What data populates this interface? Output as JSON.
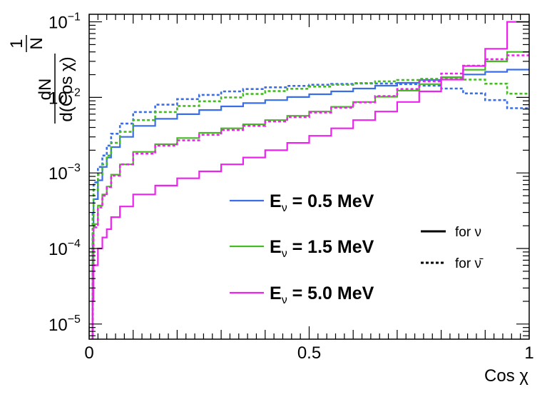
{
  "chart_data": {
    "type": "line",
    "scale_y": "log",
    "xlabel": "Cos χ",
    "ylabel": {
      "prefix_num": "1",
      "prefix_den": "N",
      "num": "dN",
      "den": "d(Cos χ)"
    },
    "xlim": [
      0,
      1
    ],
    "ylim_log10": [
      -5.2,
      -0.9
    ],
    "x_ticks": [
      {
        "value": 0,
        "label": "0"
      },
      {
        "value": 0.5,
        "label": "0.5"
      },
      {
        "value": 1,
        "label": "1"
      }
    ],
    "y_ticks": [
      {
        "exp": -5,
        "label": "10",
        "sup": "−5"
      },
      {
        "exp": -4,
        "label": "10",
        "sup": "−4"
      },
      {
        "exp": -3,
        "label": "10",
        "sup": "−3"
      },
      {
        "exp": -2,
        "label": "10",
        "sup": "−2"
      },
      {
        "exp": -1,
        "label": "10",
        "sup": "−1"
      }
    ],
    "x": [
      0.01,
      0.02,
      0.03,
      0.04,
      0.05,
      0.07,
      0.1,
      0.15,
      0.2,
      0.25,
      0.3,
      0.35,
      0.4,
      0.45,
      0.5,
      0.55,
      0.6,
      0.65,
      0.7,
      0.75,
      0.8,
      0.85,
      0.9,
      0.95,
      1.0
    ],
    "series": [
      {
        "name": "E_ν = 0.5 MeV, for ν",
        "energy": "0.5",
        "particle": "nu",
        "color": "#3a6ee8",
        "style": "solid",
        "values": [
          0.00016,
          0.00045,
          0.0008,
          0.0012,
          0.0016,
          0.0022,
          0.003,
          0.0042,
          0.0052,
          0.006,
          0.0068,
          0.0076,
          0.0084,
          0.0092,
          0.0101,
          0.011,
          0.012,
          0.0131,
          0.0143,
          0.0156,
          0.017,
          0.0185,
          0.0201,
          0.0218,
          0.0233
        ]
      },
      {
        "name": "E_ν = 0.5 MeV, for ν̄",
        "energy": "0.5",
        "particle": "nubar",
        "color": "#3a6ee8",
        "style": "dashed",
        "values": [
          0.0003,
          0.00075,
          0.0012,
          0.0017,
          0.0023,
          0.0033,
          0.0045,
          0.0064,
          0.008,
          0.0095,
          0.0108,
          0.012,
          0.0129,
          0.0136,
          0.0142,
          0.0147,
          0.0151,
          0.0153,
          0.0153,
          0.015,
          0.0143,
          0.0131,
          0.0113,
          0.0092,
          0.0072
        ]
      },
      {
        "name": "E_ν = 1.5 MeV, for ν",
        "energy": "1.5",
        "particle": "nu",
        "color": "#44bb22",
        "style": "solid",
        "values": [
          6e-05,
          0.00021,
          0.00037,
          0.00052,
          0.00066,
          0.00095,
          0.0013,
          0.0019,
          0.0024,
          0.0029,
          0.0034,
          0.0039,
          0.0044,
          0.005,
          0.0057,
          0.0065,
          0.0075,
          0.0087,
          0.0102,
          0.0123,
          0.015,
          0.0184,
          0.0232,
          0.03,
          0.04
        ]
      },
      {
        "name": "E_ν = 1.5 MeV, for ν̄",
        "energy": "1.5",
        "particle": "nubar",
        "color": "#44bb22",
        "style": "dashed",
        "values": [
          0.00025,
          0.0006,
          0.00095,
          0.0013,
          0.0017,
          0.0025,
          0.0035,
          0.005,
          0.0064,
          0.0077,
          0.0089,
          0.01,
          0.0111,
          0.0121,
          0.013,
          0.0139,
          0.0147,
          0.0155,
          0.0163,
          0.017,
          0.0176,
          0.0178,
          0.0172,
          0.0152,
          0.0112
        ]
      },
      {
        "name": "E_ν = 5.0 MeV, for ν",
        "energy": "5.0",
        "particle": "nu",
        "color": "#ee22ee",
        "style": "solid",
        "values": [
          2e-05,
          6e-05,
          0.0001,
          0.00014,
          0.00018,
          0.00026,
          0.00036,
          0.00052,
          0.00068,
          0.00085,
          0.00105,
          0.0013,
          0.0016,
          0.002,
          0.0025,
          0.0031,
          0.0039,
          0.005,
          0.0065,
          0.0087,
          0.012,
          0.0172,
          0.026,
          0.044,
          0.1
        ]
      },
      {
        "name": "E_ν = 5.0 MeV, for ν̄",
        "energy": "5.0",
        "particle": "nubar",
        "color": "#ee22ee",
        "style": "dashed",
        "values": [
          5e-05,
          0.00019,
          0.00035,
          0.0005,
          0.00065,
          0.00092,
          0.0013,
          0.0018,
          0.0023,
          0.0027,
          0.0032,
          0.0037,
          0.0042,
          0.0048,
          0.0055,
          0.0063,
          0.0073,
          0.0086,
          0.0104,
          0.0129,
          0.0163,
          0.0207,
          0.0262,
          0.032,
          0.036
        ]
      }
    ],
    "legend_energy": [
      {
        "prefix": "E",
        "sub": "ν",
        "text": " = 0.5 MeV",
        "color": "#3a6ee8"
      },
      {
        "prefix": "E",
        "sub": "ν",
        "text": " = 1.5 MeV",
        "color": "#44bb22"
      },
      {
        "prefix": "E",
        "sub": "ν",
        "text": " = 5.0 MeV",
        "color": "#ee22ee"
      }
    ],
    "legend_style": [
      {
        "text": "for ν",
        "style": "solid"
      },
      {
        "text": "for ν̄",
        "style": "dashed"
      }
    ]
  }
}
